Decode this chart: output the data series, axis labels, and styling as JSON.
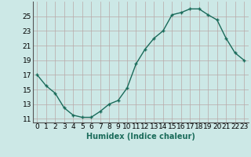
{
  "x": [
    0,
    1,
    2,
    3,
    4,
    5,
    6,
    7,
    8,
    9,
    10,
    11,
    12,
    13,
    14,
    15,
    16,
    17,
    18,
    19,
    20,
    21,
    22,
    23
  ],
  "y": [
    17,
    15.5,
    14.5,
    12.5,
    11.5,
    11.2,
    11.2,
    12.0,
    13.0,
    13.5,
    15.2,
    18.5,
    20.5,
    22.0,
    23.0,
    25.2,
    25.5,
    26.0,
    26.0,
    25.2,
    24.5,
    22.0,
    20.0,
    19.0
  ],
  "line_color": "#1a6b5a",
  "marker": "+",
  "marker_size": 3.5,
  "marker_linewidth": 1.0,
  "bg_color": "#cce8e6",
  "grid_color": "#b8a8a8",
  "xlabel": "Humidex (Indice chaleur)",
  "xlim": [
    -0.5,
    23.5
  ],
  "ylim": [
    10.5,
    27.0
  ],
  "yticks": [
    11,
    13,
    15,
    17,
    19,
    21,
    23,
    25
  ],
  "xticks": [
    0,
    1,
    2,
    3,
    4,
    5,
    6,
    7,
    8,
    9,
    10,
    11,
    12,
    13,
    14,
    15,
    16,
    17,
    18,
    19,
    20,
    21,
    22,
    23
  ],
  "xtick_labels": [
    "0",
    "1",
    "2",
    "3",
    "4",
    "5",
    "6",
    "7",
    "8",
    "9",
    "10",
    "11",
    "12",
    "13",
    "14",
    "15",
    "16",
    "17",
    "18",
    "19",
    "20",
    "21",
    "22",
    "23"
  ],
  "xlabel_fontsize": 7,
  "tick_fontsize": 6.5,
  "line_width": 1.0
}
